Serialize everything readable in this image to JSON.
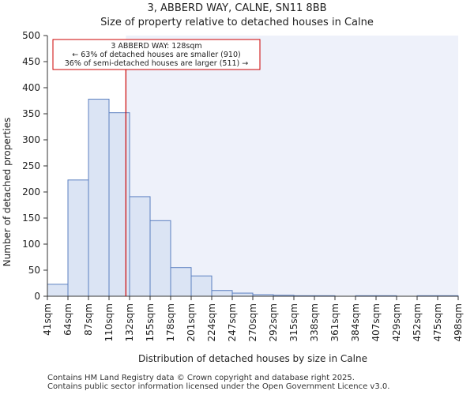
{
  "chart_data": {
    "type": "bar",
    "title_line1": "3, ABBERD WAY, CALNE, SN11 8BB",
    "title_line2": "Size of property relative to detached houses in Calne",
    "xlabel": "Distribution of detached houses by size in Calne",
    "ylabel": "Number of detached properties",
    "ylim": [
      0,
      500
    ],
    "yticks": [
      0,
      50,
      100,
      150,
      200,
      250,
      300,
      350,
      400,
      450,
      500
    ],
    "x_tick_labels": [
      "41sqm",
      "64sqm",
      "87sqm",
      "110sqm",
      "132sqm",
      "155sqm",
      "178sqm",
      "201sqm",
      "224sqm",
      "247sqm",
      "270sqm",
      "292sqm",
      "315sqm",
      "338sqm",
      "361sqm",
      "384sqm",
      "407sqm",
      "429sqm",
      "452sqm",
      "475sqm",
      "498sqm"
    ],
    "values": [
      23,
      223,
      378,
      352,
      191,
      145,
      55,
      39,
      11,
      6,
      3,
      2,
      1,
      1,
      0,
      1,
      1,
      0,
      1,
      1
    ],
    "property_marker_bin_position": 3.82,
    "marker_color": "#cc0000",
    "bar_fill": "#dbe4f4",
    "bar_edge": "#5b7fc0",
    "highlight_fill": "#eef1fa",
    "annotation": {
      "line1": "3 ABBERD WAY: 128sqm",
      "line2": "← 63% of detached houses are smaller (910)",
      "line3": "36% of semi-detached houses are larger (511) →"
    }
  },
  "footer": {
    "line1": "Contains HM Land Registry data © Crown copyright and database right 2025.",
    "line2": "Contains public sector information licensed under the Open Government Licence v3.0."
  }
}
